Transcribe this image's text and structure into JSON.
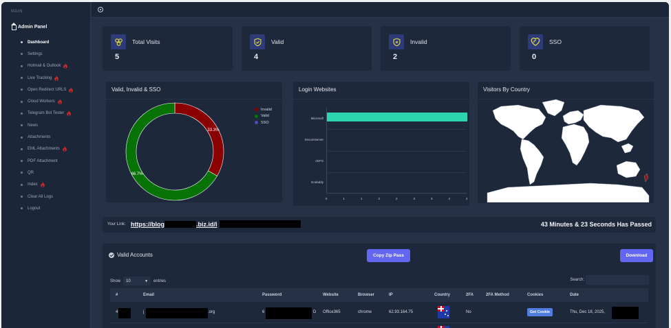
{
  "sidebar": {
    "section": "MAIN",
    "title": "Admin Panel",
    "items": [
      {
        "label": "Dashboard",
        "active": true,
        "flame": false
      },
      {
        "label": "Settings",
        "flame": false
      },
      {
        "label": "Hotmail & Outlook",
        "flame": true
      },
      {
        "label": "Live Tracking",
        "flame": true
      },
      {
        "label": "Open Redirect URLS",
        "flame": true
      },
      {
        "label": "Cloud Workers",
        "flame": true
      },
      {
        "label": "Telegram Bot Tester",
        "flame": true
      },
      {
        "label": "News",
        "flame": false
      },
      {
        "label": "Attachments",
        "flame": false
      },
      {
        "label": "EML Attachments",
        "flame": true
      },
      {
        "label": "PDF Attachment",
        "flame": false
      },
      {
        "label": "QR",
        "flame": false
      },
      {
        "label": "Index",
        "flame": true
      },
      {
        "label": "Clear All Logs",
        "flame": false
      },
      {
        "label": "Logout",
        "flame": false
      }
    ]
  },
  "stats": [
    {
      "label": "Total Visits",
      "value": "5",
      "icon": "biohazard-icon"
    },
    {
      "label": "Valid",
      "value": "4",
      "icon": "shield-check-icon"
    },
    {
      "label": "Invalid",
      "value": "2",
      "icon": "shield-x-icon"
    },
    {
      "label": "SSO",
      "value": "0",
      "icon": "heart-link-icon"
    }
  ],
  "panels": {
    "donut_title": "Valid, Invalid & SSO",
    "bar_title": "Login Websites",
    "map_title": "Visitors By Country"
  },
  "chart_data": [
    {
      "type": "pie",
      "title": "Valid, Invalid & SSO",
      "categories": [
        "Invalid",
        "Valid",
        "SSO"
      ],
      "values": [
        33.3,
        66.7,
        0
      ],
      "labels": [
        "33.3%",
        "66.7%",
        ""
      ],
      "colors": [
        "#8b0000",
        "#077307",
        "#4b4fb0"
      ],
      "legend_position": "right"
    },
    {
      "type": "bar",
      "orientation": "horizontal",
      "title": "Login Websites",
      "categories": [
        "Microsoft",
        "SecureServer",
        "ADFS",
        "Godaddy"
      ],
      "values": [
        4,
        0,
        0,
        0
      ],
      "xticks": [
        "0",
        "1",
        "1",
        "2",
        "2",
        "3",
        "3",
        "4",
        "4"
      ],
      "xlim": [
        0,
        4
      ],
      "color": "#2dd4b0"
    }
  ],
  "link": {
    "label": "Your Link:",
    "url_prefix": "https://blog",
    "url_mid": ".biz.id/l",
    "elapsed": "43 Minutes & 23 Seconds Has Passed"
  },
  "accounts": {
    "title": "Valid Accounts",
    "copy_button": "Copy Zip Pass",
    "download_button": "Download",
    "show_label": "Show",
    "show_value": "10",
    "entries_label": "entries",
    "search_label": "Search:",
    "columns": [
      "#",
      "Email",
      "Password",
      "Website",
      "Browser",
      "IP",
      "Country",
      "2FA",
      "2FA Method",
      "Cookies",
      "Date"
    ],
    "rows": [
      {
        "id": "4",
        "email_prefix": "j",
        "email_suffix": ".org",
        "password_prefix": "6",
        "password_suffix": "D",
        "website": "Office365",
        "browser": "chrome",
        "ip": "62.93.164.75",
        "twofa": "No",
        "twofa_method": "",
        "cookie_button": "Get Cookie",
        "date": "Thu, Dec 18, 2025,"
      }
    ]
  }
}
